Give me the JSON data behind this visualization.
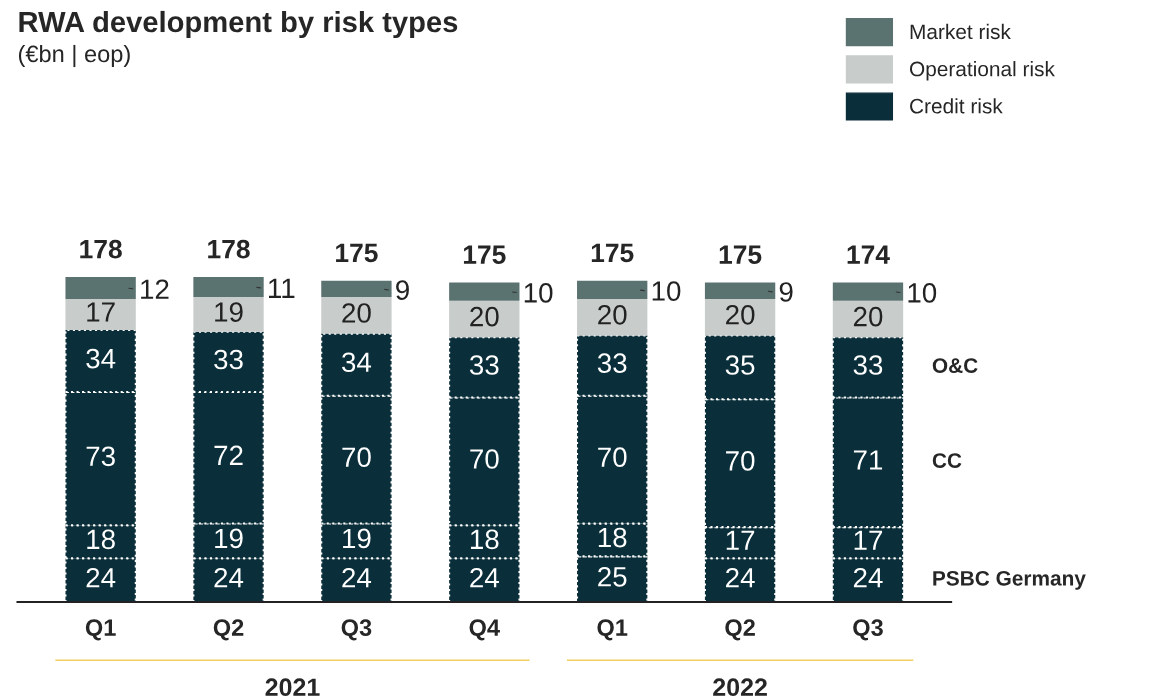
{
  "chart_data": {
    "type": "bar",
    "title": "RWA development by risk types",
    "subtitle": "(€bn | eop)",
    "stacked": true,
    "data_labels": true,
    "legend": "top right",
    "categories": [
      "Q1",
      "Q2",
      "Q3",
      "Q4",
      "Q1",
      "Q2",
      "Q3"
    ],
    "series": [
      {
        "name": "PSBC Germany",
        "color": "#0b2f3a",
        "values": [
          24,
          24,
          24,
          24,
          25,
          24,
          24
        ]
      },
      {
        "name": null,
        "color": "#0b2f3a",
        "values": [
          18,
          19,
          19,
          18,
          18,
          17,
          17
        ]
      },
      {
        "name": "CC",
        "color": "#0b2f3a",
        "values": [
          73,
          72,
          70,
          70,
          70,
          70,
          71
        ]
      },
      {
        "name": "O&C",
        "color": "#0b2f3a",
        "values": [
          34,
          33,
          34,
          33,
          33,
          35,
          33
        ]
      },
      {
        "name": "Operational risk",
        "color": "#c8cccb",
        "values": [
          17,
          19,
          20,
          20,
          20,
          20,
          20
        ]
      },
      {
        "name": "Market risk",
        "color": "#5a7370",
        "values": [
          12,
          11,
          9,
          10,
          10,
          9,
          10
        ]
      }
    ],
    "totals": [
      "178",
      "178",
      "175",
      "175",
      "175",
      "175",
      "174"
    ],
    "annotations": [
      "Credit risk",
      "2021",
      "2022"
    ]
  }
}
